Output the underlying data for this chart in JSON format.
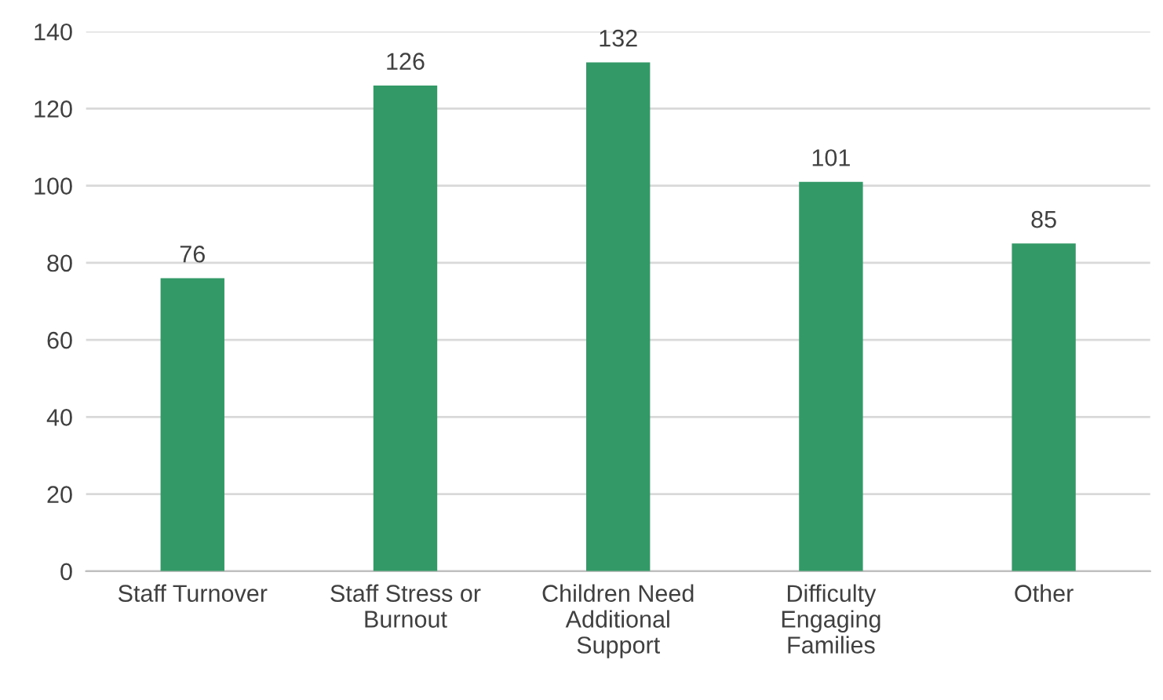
{
  "chart_data": {
    "type": "bar",
    "categories": [
      "Staff Turnover",
      "Staff Stress or\nBurnout",
      "Children Need\nAdditional\nSupport",
      "Difficulty\nEngaging\nFamilies",
      "Other"
    ],
    "values": [
      76,
      126,
      132,
      101,
      85
    ],
    "color": "#339966",
    "ylim": [
      0,
      140
    ],
    "yticks": [
      0,
      20,
      40,
      60,
      80,
      100,
      120,
      140
    ],
    "grid": "y",
    "data_labels": true
  }
}
